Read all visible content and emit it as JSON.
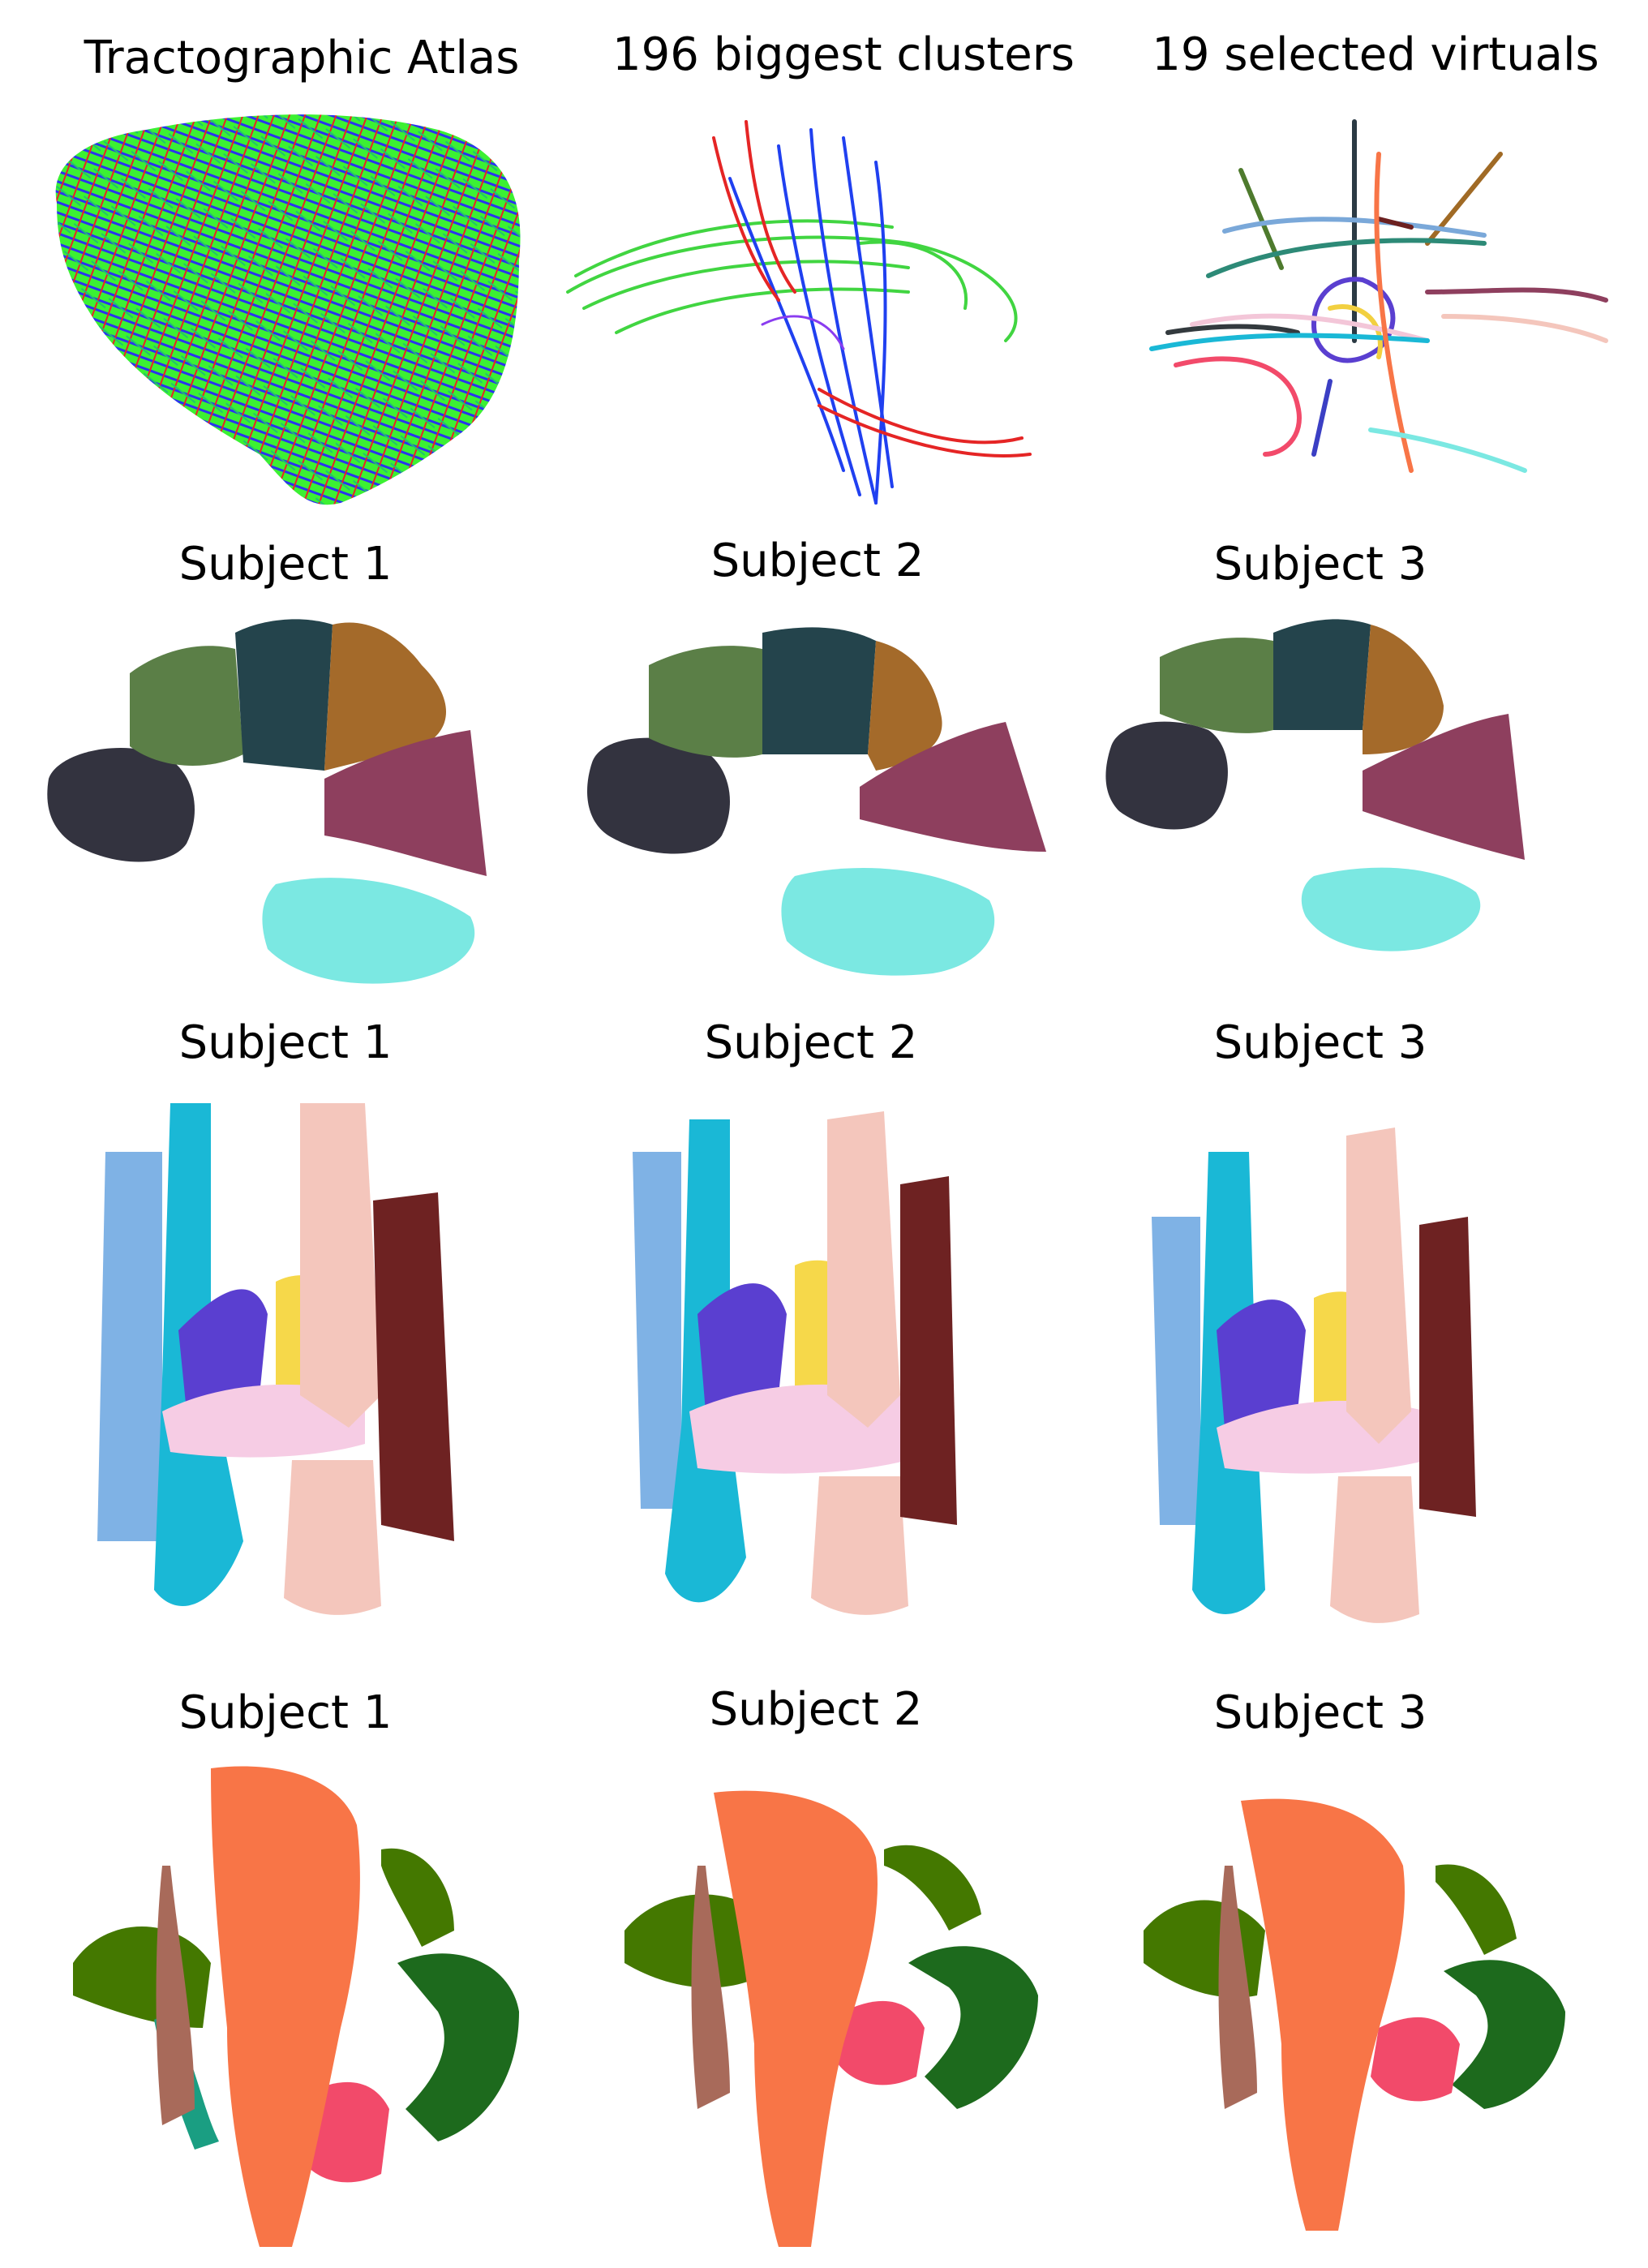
{
  "panels": {
    "row1": [
      {
        "title": "Tractographic Atlas"
      },
      {
        "title": "196 biggest clusters"
      },
      {
        "title": "19 selected virtuals"
      }
    ],
    "row2": [
      {
        "title": "Subject 1"
      },
      {
        "title": "Subject 2"
      },
      {
        "title": "Subject 3"
      }
    ],
    "row3": [
      {
        "title": "Subject 1"
      },
      {
        "title": "Subject 2"
      },
      {
        "title": "Subject 3"
      }
    ],
    "row4": [
      {
        "title": "Subject 1"
      },
      {
        "title": "Subject 2"
      },
      {
        "title": "Subject 3"
      }
    ]
  },
  "colors": {
    "atlas_mix": [
      "#28f020",
      "#2020f0",
      "#f02020",
      "#20d060"
    ],
    "sagittal": {
      "frontal": "#5b7f47",
      "central": "#24444c",
      "parietal": "#a46a2a",
      "occipital_low": "#8e3f5e",
      "prefrontal": "#33333f",
      "temporal": "#7be8e2"
    },
    "axial": {
      "left_outer": "#7fb2e5",
      "left_inner": "#1ab8d6",
      "purple": "#5a3fd0",
      "yellow": "#f6d84a",
      "pink_light": "#f6cce4",
      "salmon": "#f4c6bc",
      "right_outer": "#6e2222"
    },
    "coronal": {
      "center": "#f87547",
      "olive": "#447800",
      "dark_green": "#1d6a1d",
      "teal": "#1a9e82",
      "rose": "#f24a6a",
      "brown": "#a86a5a"
    }
  }
}
